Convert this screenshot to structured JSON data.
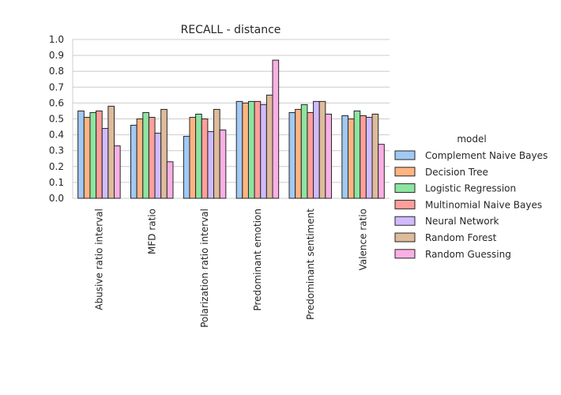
{
  "chart_data": {
    "type": "bar",
    "title": "RECALL - distance",
    "xlabel": "",
    "ylabel": "",
    "ylim": [
      0,
      1.0
    ],
    "yticks": [
      "0.0",
      "0.1",
      "0.2",
      "0.3",
      "0.4",
      "0.5",
      "0.6",
      "0.7",
      "0.8",
      "0.9",
      "1.0"
    ],
    "grid": "horizontal",
    "legend_title": "model",
    "legend_position": "right",
    "categories": [
      "Abusive ratio interval",
      "MFD ratio",
      "Polarization ratio interval",
      "Predominant emotion",
      "Predominant sentiment",
      "Valence ratio"
    ],
    "series": [
      {
        "name": "Complement Naive Bayes",
        "color": "#a1c9f4",
        "values": [
          0.55,
          0.46,
          0.39,
          0.61,
          0.54,
          0.52
        ]
      },
      {
        "name": "Decision Tree",
        "color": "#ffb482",
        "values": [
          0.51,
          0.5,
          0.51,
          0.6,
          0.56,
          0.5
        ]
      },
      {
        "name": "Logistic Regression",
        "color": "#8de5a1",
        "values": [
          0.54,
          0.54,
          0.53,
          0.61,
          0.59,
          0.55
        ]
      },
      {
        "name": "Multinomial Naive Bayes",
        "color": "#ff9f9b",
        "values": [
          0.55,
          0.51,
          0.5,
          0.61,
          0.54,
          0.52
        ]
      },
      {
        "name": "Neural Network",
        "color": "#d0bbff",
        "values": [
          0.44,
          0.41,
          0.42,
          0.59,
          0.61,
          0.51
        ]
      },
      {
        "name": "Random Forest",
        "color": "#debb9b",
        "values": [
          0.58,
          0.56,
          0.56,
          0.65,
          0.61,
          0.53
        ]
      },
      {
        "name": "Random Guessing",
        "color": "#fab0e4",
        "values": [
          0.33,
          0.23,
          0.43,
          0.87,
          0.53,
          0.34
        ]
      }
    ]
  }
}
